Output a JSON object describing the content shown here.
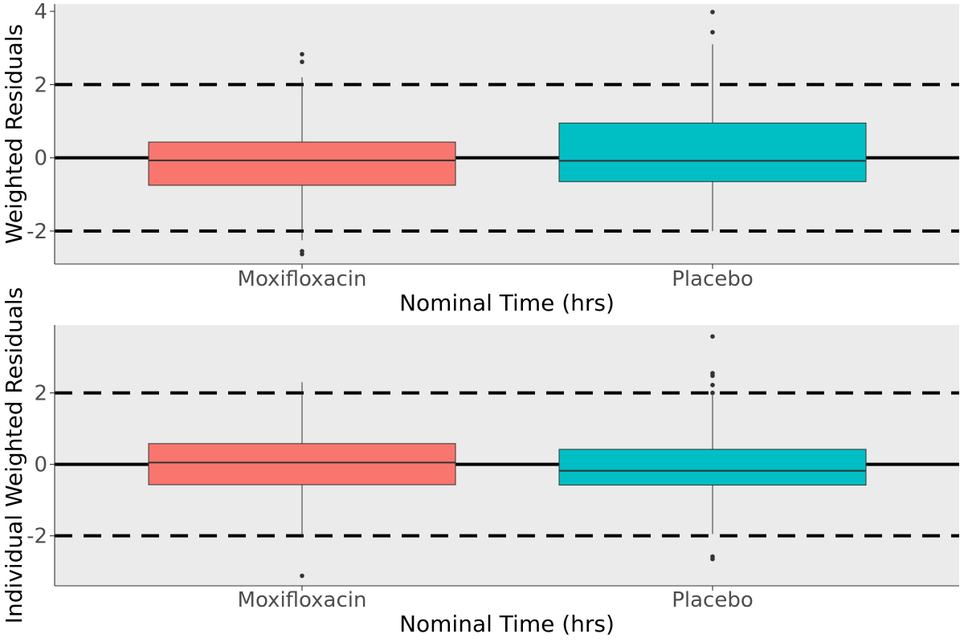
{
  "chart_data": [
    {
      "type": "box",
      "xlabel": "Nominal Time (hrs)",
      "ylabel": "Weighted Residuals",
      "ylim": [
        -2.9,
        4.2
      ],
      "yticks": [
        4,
        2,
        0,
        -2
      ],
      "ytick_labels": [
        "4",
        "2",
        "0",
        "-2"
      ],
      "reference_lines": {
        "solid": 0,
        "dashed": [
          2,
          -2
        ]
      },
      "categories": [
        "Moxifloxacin",
        "Placebo"
      ],
      "boxes": [
        {
          "category": "Moxifloxacin",
          "color": "#f8766d",
          "q1": -0.75,
          "median": -0.07,
          "q3": 0.43,
          "whisker_low": -2.25,
          "whisker_high": 2.2,
          "outliers": [
            2.83,
            2.62,
            -2.55,
            -2.63
          ]
        },
        {
          "category": "Placebo",
          "color": "#00bfc4",
          "q1": -0.65,
          "median": -0.08,
          "q3": 0.95,
          "whisker_low": -2.0,
          "whisker_high": 3.1,
          "outliers": [
            3.98,
            3.43
          ]
        }
      ]
    },
    {
      "type": "box",
      "xlabel": "Nominal Time (hrs)",
      "ylabel": "Individual Weighted Residuals",
      "ylim": [
        -3.4,
        3.9
      ],
      "yticks": [
        2,
        0,
        -2
      ],
      "ytick_labels": [
        "2",
        "0",
        "-2"
      ],
      "reference_lines": {
        "solid": 0,
        "dashed": [
          2,
          -2
        ]
      },
      "categories": [
        "Moxifloxacin",
        "Placebo"
      ],
      "boxes": [
        {
          "category": "Moxifloxacin",
          "color": "#f8766d",
          "q1": -0.57,
          "median": 0.05,
          "q3": 0.58,
          "whisker_low": -2.05,
          "whisker_high": 2.3,
          "outliers": [
            -3.12
          ]
        },
        {
          "category": "Placebo",
          "color": "#00bfc4",
          "q1": -0.58,
          "median": -0.18,
          "q3": 0.42,
          "whisker_low": -1.95,
          "whisker_high": 1.93,
          "outliers": [
            3.58,
            2.55,
            2.48,
            2.22,
            2.0,
            -2.58,
            -2.65
          ]
        }
      ]
    }
  ]
}
